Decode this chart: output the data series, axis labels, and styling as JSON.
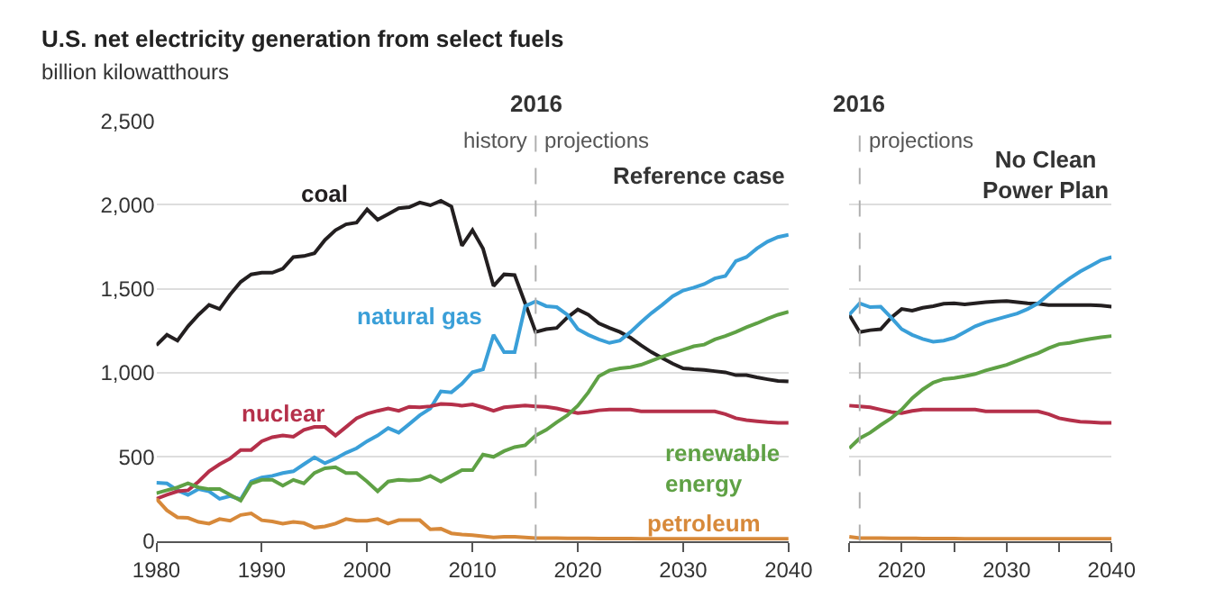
{
  "chart_data": [
    {
      "type": "line",
      "title": "U.S. net electricity generation from select fuels",
      "subtitle": "billion kilowatthours",
      "x": [
        1980,
        1981,
        1982,
        1983,
        1984,
        1985,
        1986,
        1987,
        1988,
        1989,
        1990,
        1991,
        1992,
        1993,
        1994,
        1995,
        1996,
        1997,
        1998,
        1999,
        2000,
        2001,
        2002,
        2003,
        2004,
        2005,
        2006,
        2007,
        2008,
        2009,
        2010,
        2011,
        2012,
        2013,
        2014,
        2015,
        2016,
        2017,
        2018,
        2019,
        2020,
        2021,
        2022,
        2023,
        2024,
        2025,
        2026,
        2027,
        2028,
        2029,
        2030,
        2031,
        2032,
        2033,
        2034,
        2035,
        2036,
        2037,
        2038,
        2039,
        2040
      ],
      "xlim": [
        1980,
        2040
      ],
      "xticks": [
        1980,
        1990,
        2000,
        2010,
        2020,
        2030,
        2040
      ],
      "ylim": [
        0,
        2500
      ],
      "yticks": [
        {
          "value": 0,
          "label": "0"
        },
        {
          "value": 500,
          "label": "500"
        },
        {
          "value": 1000,
          "label": "1,000"
        },
        {
          "value": 1500,
          "label": "1,500"
        },
        {
          "value": 2000,
          "label": "2,000"
        },
        {
          "value": 2500,
          "label": "2,500"
        }
      ],
      "grid": "y",
      "legend": false,
      "ref_lines": [
        {
          "axis": "x",
          "value": 2016,
          "label": "2016",
          "color": "#b0b0b0",
          "line_style": "dashed"
        }
      ],
      "annotations": [
        "history",
        "projections",
        "Reference case"
      ],
      "series": [
        {
          "name": "coal",
          "color": "#231f20",
          "values": [
            1164,
            1226,
            1192,
            1277,
            1346,
            1404,
            1380,
            1466,
            1541,
            1586,
            1596,
            1596,
            1620,
            1689,
            1695,
            1712,
            1791,
            1849,
            1884,
            1894,
            1973,
            1911,
            1945,
            1980,
            1986,
            2014,
            1997,
            2024,
            1990,
            1757,
            1849,
            1740,
            1517,
            1586,
            1582,
            1414,
            1243,
            1260,
            1267,
            1329,
            1377,
            1346,
            1295,
            1267,
            1243,
            1209,
            1164,
            1123,
            1089,
            1055,
            1027,
            1021,
            1017,
            1010,
            1003,
            986,
            986,
            973,
            962,
            952,
            949
          ]
        },
        {
          "name": "natural gas",
          "color": "#3a9fd8",
          "values": [
            346,
            342,
            301,
            274,
            308,
            295,
            250,
            267,
            247,
            353,
            377,
            387,
            404,
            414,
            456,
            497,
            462,
            490,
            524,
            551,
            593,
            627,
            671,
            644,
            695,
            747,
            788,
            890,
            884,
            935,
            1004,
            1021,
            1226,
            1123,
            1123,
            1397,
            1425,
            1397,
            1391,
            1346,
            1260,
            1226,
            1199,
            1178,
            1192,
            1243,
            1301,
            1356,
            1404,
            1456,
            1490,
            1507,
            1528,
            1562,
            1576,
            1665,
            1689,
            1740,
            1781,
            1808,
            1822
          ]
        },
        {
          "name": "nuclear",
          "color": "#b5304a",
          "values": [
            250,
            274,
            295,
            301,
            353,
            414,
            456,
            490,
            541,
            541,
            593,
            617,
            627,
            620,
            661,
            678,
            678,
            627,
            678,
            730,
            757,
            774,
            788,
            774,
            798,
            795,
            801,
            815,
            812,
            805,
            812,
            795,
            774,
            795,
            801,
            805,
            801,
            798,
            788,
            774,
            760,
            767,
            777,
            781,
            781,
            781,
            771,
            771,
            771,
            771,
            771,
            771,
            771,
            771,
            754,
            730,
            719,
            712,
            706,
            702,
            702
          ]
        },
        {
          "name": "renewable energy",
          "color": "#5fa145",
          "values": [
            284,
            301,
            318,
            342,
            318,
            308,
            308,
            274,
            240,
            342,
            363,
            363,
            329,
            363,
            342,
            404,
            432,
            438,
            404,
            404,
            353,
            295,
            353,
            363,
            360,
            363,
            387,
            353,
            387,
            421,
            421,
            514,
            500,
            534,
            558,
            569,
            627,
            661,
            706,
            747,
            805,
            884,
            980,
            1014,
            1027,
            1034,
            1048,
            1072,
            1096,
            1117,
            1137,
            1158,
            1168,
            1199,
            1219,
            1243,
            1271,
            1295,
            1322,
            1346,
            1363
          ]
        },
        {
          "name": "petroleum",
          "color": "#d7893a",
          "values": [
            250,
            182,
            140,
            137,
            113,
            103,
            130,
            120,
            154,
            164,
            123,
            116,
            103,
            113,
            106,
            79,
            86,
            103,
            130,
            120,
            120,
            130,
            103,
            123,
            123,
            123,
            69,
            72,
            45,
            38,
            34,
            27,
            21,
            24,
            24,
            21,
            17,
            16,
            16,
            15,
            15,
            15,
            14,
            14,
            14,
            14,
            13,
            13,
            13,
            13,
            13,
            13,
            12,
            12,
            12,
            12,
            12,
            12,
            12,
            12,
            12
          ]
        }
      ]
    },
    {
      "type": "line",
      "x": [
        2015,
        2016,
        2017,
        2018,
        2019,
        2020,
        2021,
        2022,
        2023,
        2024,
        2025,
        2026,
        2027,
        2028,
        2029,
        2030,
        2031,
        2032,
        2033,
        2034,
        2035,
        2036,
        2037,
        2038,
        2039,
        2040
      ],
      "xlim": [
        2015,
        2040
      ],
      "xticks": [
        {
          "value": 2015,
          "label": null
        },
        2020,
        {
          "value": 2025,
          "label": null
        },
        2030,
        {
          "value": 2035,
          "label": null
        },
        2040
      ],
      "ylim": [
        0,
        2500
      ],
      "yticks": [
        0,
        500,
        1000,
        1500,
        2000,
        2500
      ],
      "tick_labels": "x",
      "grid": "y",
      "legend": false,
      "ref_lines": [
        {
          "axis": "x",
          "value": 2016,
          "label": "2016",
          "color": "#b0b0b0",
          "line_style": "dashed"
        }
      ],
      "annotations": [
        "projections",
        "No Clean Power Plan"
      ],
      "series": [
        {
          "color": "#231f20",
          "values": [
            1346,
            1243,
            1254,
            1260,
            1329,
            1380,
            1370,
            1387,
            1397,
            1411,
            1414,
            1408,
            1414,
            1421,
            1425,
            1428,
            1421,
            1414,
            1411,
            1404,
            1404,
            1404,
            1404,
            1404,
            1401,
            1394
          ]
        },
        {
          "color": "#3a9fd8",
          "values": [
            1346,
            1414,
            1391,
            1394,
            1329,
            1260,
            1226,
            1202,
            1185,
            1192,
            1209,
            1243,
            1277,
            1301,
            1318,
            1336,
            1353,
            1380,
            1414,
            1466,
            1517,
            1562,
            1603,
            1637,
            1671,
            1689
          ]
        },
        {
          "color": "#b5304a",
          "values": [
            805,
            801,
            795,
            781,
            767,
            760,
            774,
            781,
            781,
            781,
            781,
            781,
            781,
            771,
            771,
            771,
            771,
            771,
            771,
            754,
            730,
            719,
            709,
            706,
            702,
            702
          ]
        },
        {
          "color": "#5fa145",
          "values": [
            551,
            610,
            644,
            689,
            730,
            781,
            849,
            901,
            942,
            963,
            969,
            980,
            993,
            1014,
            1031,
            1048,
            1072,
            1096,
            1117,
            1147,
            1171,
            1178,
            1192,
            1202,
            1212,
            1219
          ]
        },
        {
          "color": "#d7893a",
          "values": [
            25,
            17,
            16,
            16,
            15,
            15,
            15,
            14,
            14,
            14,
            14,
            13,
            13,
            13,
            13,
            13,
            13,
            12,
            12,
            12,
            12,
            12,
            12,
            12,
            12,
            12
          ]
        }
      ]
    }
  ]
}
